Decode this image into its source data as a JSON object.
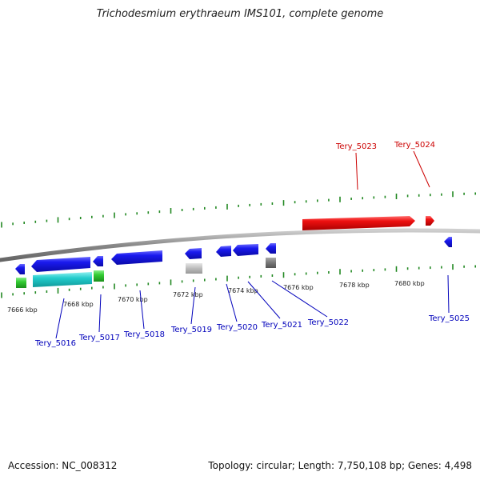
{
  "title": "Trichodesmium erythraeum IMS101, complete genome",
  "footer": {
    "accession": "Accession: NC_008312",
    "stats": "Topology: circular; Length: 7,750,108 bp; Genes: 4,498"
  },
  "colors": {
    "forward_gene": "#ee1111",
    "reverse_gene": "#1a1aee",
    "cds_green": "#33cc33",
    "cds_cyan": "#22cccc",
    "pseudo_grey": "#bbbbbb",
    "rna_dark": "#777777",
    "tick_green": "#228822",
    "backbone": "#888888",
    "label_blue": "#0000bb",
    "label_red": "#cc0000"
  },
  "scale": {
    "unit": "kbp",
    "labels": [
      {
        "kbp": 7666,
        "text": "7666 kbp"
      },
      {
        "kbp": 7668,
        "text": "7668 kbp"
      },
      {
        "kbp": 7670,
        "text": "7670 kbp"
      },
      {
        "kbp": 7672,
        "text": "7672 kbp"
      },
      {
        "kbp": 7674,
        "text": "7674 kbp"
      },
      {
        "kbp": 7676,
        "text": "7676 kbp"
      },
      {
        "kbp": 7678,
        "text": "7678 kbp"
      },
      {
        "kbp": 7680,
        "text": "7680 kbp"
      }
    ]
  },
  "genes_forward": [
    {
      "name": "Tery_5023",
      "label_color": "red"
    },
    {
      "name": "Tery_5024",
      "label_color": "red"
    }
  ],
  "genes_reverse": [
    {
      "name": "Tery_5016"
    },
    {
      "name": "Tery_5017"
    },
    {
      "name": "Tery_5018"
    },
    {
      "name": "Tery_5019"
    },
    {
      "name": "Tery_5020"
    },
    {
      "name": "Tery_5021"
    },
    {
      "name": "Tery_5022"
    },
    {
      "name": "Tery_5025"
    }
  ]
}
